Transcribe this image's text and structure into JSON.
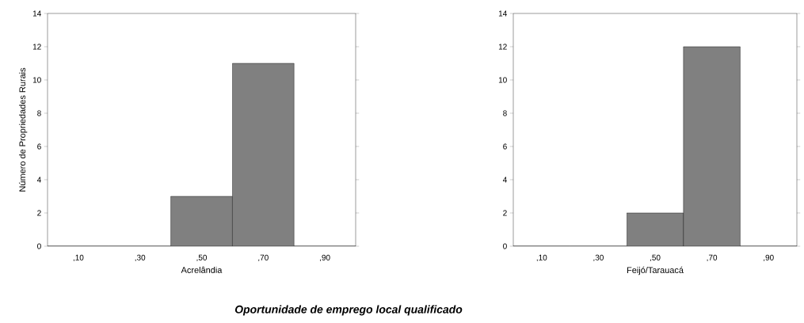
{
  "chart_data": [
    {
      "type": "bar",
      "categories": [
        ",10",
        ",30",
        ",50",
        ",70",
        ",90"
      ],
      "values": [
        0,
        0,
        3,
        11,
        0
      ],
      "color": "#808080",
      "xlabel": "Acrelândia",
      "ylabel": "Número de Propriedades Rurais",
      "ylim": [
        0,
        14
      ],
      "yticks": [
        0,
        2,
        4,
        6,
        8,
        10,
        12,
        14
      ],
      "grid": false,
      "annotations": [
        "Oportunidade de emprego local qualificado"
      ]
    },
    {
      "type": "bar",
      "categories": [
        ",10",
        ",30",
        ",50",
        ",70",
        ",90"
      ],
      "values": [
        0,
        0,
        2,
        12,
        0
      ],
      "color": "#808080",
      "xlabel": "Feijó/Tarauacá",
      "ylim": [
        0,
        14
      ],
      "yticks": [
        0,
        2,
        4,
        6,
        8,
        10,
        12,
        14
      ],
      "grid": false
    }
  ]
}
